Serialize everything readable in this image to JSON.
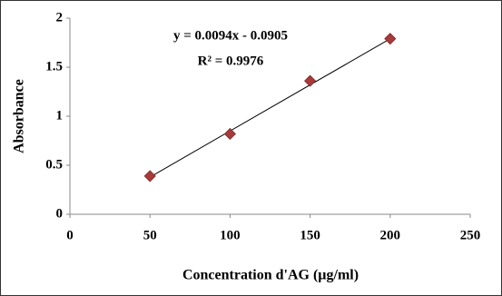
{
  "chart_data": {
    "type": "scatter",
    "x_label": "Concentration d'AG (µg/ml)",
    "y_label": "Absorbance",
    "x": [
      50,
      100,
      150,
      200
    ],
    "values": [
      0.39,
      0.82,
      1.36,
      1.79
    ],
    "color": "#a83a3a",
    "trendline": true,
    "annotations": [
      "y = 0.0094x - 0.0905",
      "R² = 0.9976"
    ],
    "xlim": [
      0,
      250
    ],
    "xticks": [
      0,
      50,
      100,
      150,
      200,
      250
    ],
    "ylim": [
      0,
      2
    ],
    "yticks": [
      0,
      0.5,
      1,
      1.5,
      2
    ],
    "grid": false
  }
}
